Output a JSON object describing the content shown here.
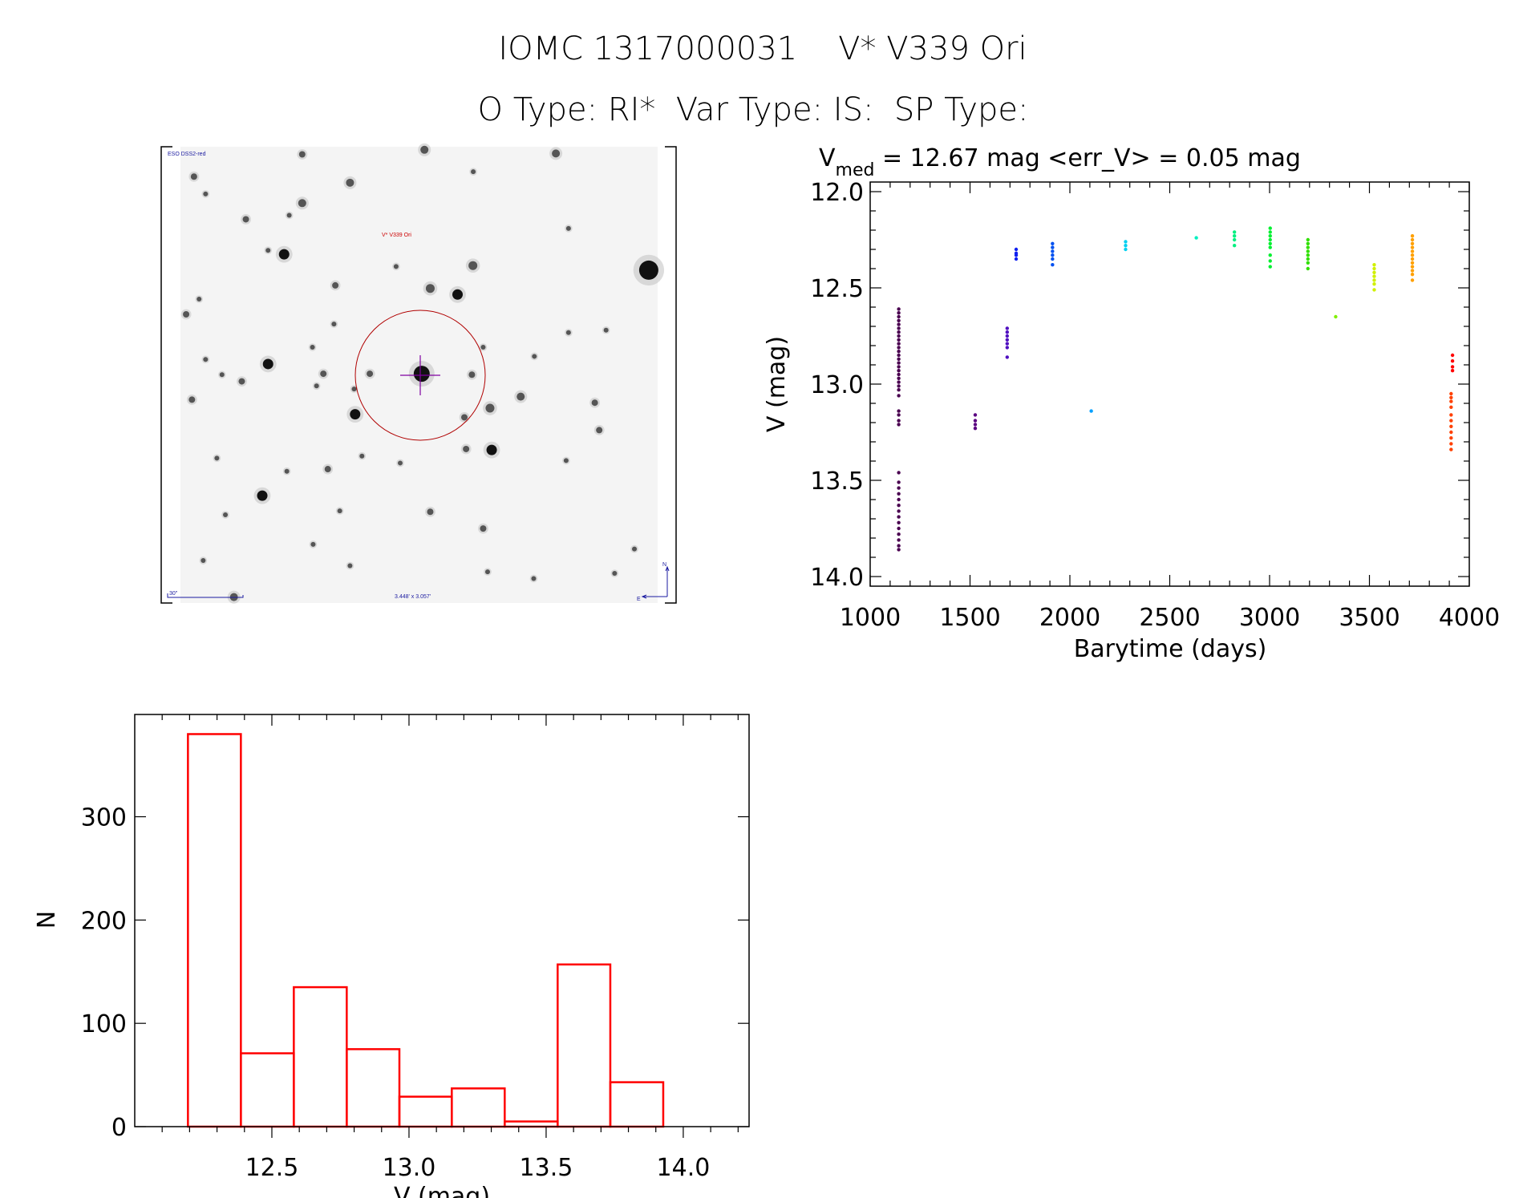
{
  "header": {
    "title_line1": "IOMC 1317000031    V* V339 Ori",
    "title_line2": "O Type: RI*  Var Type: IS:  SP Type:"
  },
  "finder_image": {
    "survey_label": "ESO DSS2-red",
    "target_label": "V* V339 Ori",
    "scale_label": "30\"",
    "field_size_label": "3.448' x 3.057'",
    "north_label": "N",
    "east_label": "E",
    "label_color": "#1a1aa0",
    "target_color": "#cc0000",
    "crosshair_color": "#8000a0"
  },
  "chart_data": [
    {
      "type": "scatter",
      "title_main": "V",
      "title_sub": "med",
      "title_rest": " = 12.67 mag <err_V> = 0.05 mag",
      "xlabel": "Barytime (days)",
      "ylabel": "V (mag)",
      "xlim": [
        1000,
        4000
      ],
      "ylim": [
        11.95,
        14.05
      ],
      "y_inverted": true,
      "xticks": [
        "1000",
        "1500",
        "2000",
        "2500",
        "3000",
        "3500",
        "4000"
      ],
      "yticks": [
        "12.0",
        "12.5",
        "13.0",
        "13.5",
        "14.0"
      ],
      "grid": false,
      "groups": [
        {
          "x": 1143,
          "color": "#4a0050",
          "y": [
            12.61,
            12.63,
            12.65,
            12.67,
            12.69,
            12.71,
            12.73,
            12.75,
            12.77,
            12.79,
            12.81,
            12.83,
            12.85,
            12.87,
            12.89,
            12.91,
            12.93,
            12.95,
            12.97,
            12.99,
            13.01,
            13.03,
            13.06,
            13.14,
            13.16,
            13.19,
            13.21,
            13.46,
            13.51,
            13.54,
            13.57,
            13.6,
            13.63,
            13.66,
            13.69,
            13.72,
            13.75,
            13.78,
            13.81,
            13.84,
            13.86
          ]
        },
        {
          "x": 1526,
          "color": "#5a0080",
          "y": [
            13.16,
            13.19,
            13.21,
            13.23
          ]
        },
        {
          "x": 1686,
          "color": "#5010c0",
          "y": [
            12.71,
            12.73,
            12.75,
            12.77,
            12.79,
            12.81,
            12.86
          ]
        },
        {
          "x": 1731,
          "color": "#1020f0",
          "y": [
            12.3,
            12.32,
            12.33,
            12.35
          ]
        },
        {
          "x": 1913,
          "color": "#0050f0",
          "y": [
            12.27,
            12.29,
            12.31,
            12.33,
            12.35,
            12.38
          ]
        },
        {
          "x": 2107,
          "color": "#00a0ff",
          "y": [
            13.14
          ]
        },
        {
          "x": 2279,
          "color": "#00d0f0",
          "y": [
            12.26,
            12.28,
            12.3
          ]
        },
        {
          "x": 2633,
          "color": "#00f0c0",
          "y": [
            12.24
          ]
        },
        {
          "x": 2824,
          "color": "#00f080",
          "y": [
            12.21,
            12.23,
            12.25,
            12.28
          ]
        },
        {
          "x": 3003,
          "color": "#00f030",
          "y": [
            12.19,
            12.21,
            12.23,
            12.25,
            12.27,
            12.29,
            12.33,
            12.36,
            12.39
          ]
        },
        {
          "x": 3192,
          "color": "#30e000",
          "y": [
            12.25,
            12.27,
            12.29,
            12.31,
            12.33,
            12.35,
            12.37,
            12.4
          ]
        },
        {
          "x": 3331,
          "color": "#80f000",
          "y": [
            12.65
          ]
        },
        {
          "x": 3524,
          "color": "#d0f000",
          "y": [
            12.38,
            12.4,
            12.42,
            12.44,
            12.46,
            12.48,
            12.51
          ]
        },
        {
          "x": 3715,
          "color": "#ffa000",
          "y": [
            12.23,
            12.25,
            12.27,
            12.29,
            12.31,
            12.33,
            12.35,
            12.37,
            12.39,
            12.41,
            12.43,
            12.46
          ]
        },
        {
          "x": 3909,
          "color": "#ff4000",
          "y": [
            13.05,
            13.07,
            13.09,
            13.12,
            13.16,
            13.19,
            13.22,
            13.25,
            13.28,
            13.31,
            13.34
          ]
        },
        {
          "x": 3916,
          "color": "#ff0000",
          "y": [
            12.85,
            12.88,
            12.91,
            12.93
          ]
        }
      ]
    },
    {
      "type": "bar",
      "style": "histogram-outline",
      "color": "#ff0000",
      "xlabel": "V (mag)",
      "ylabel": "N",
      "xlim": [
        12.0,
        14.24
      ],
      "ylim": [
        0,
        399
      ],
      "xticks": [
        "12.5",
        "13.0",
        "13.5",
        "14.0"
      ],
      "yticks": [
        "0",
        "100",
        "200",
        "300"
      ],
      "bin_edges": [
        12.194,
        12.387,
        12.58,
        12.773,
        12.965,
        13.156,
        13.349,
        13.542,
        13.734,
        13.927
      ],
      "values": [
        380,
        71,
        135,
        75,
        29,
        37,
        5,
        157,
        43
      ],
      "grid": false
    }
  ]
}
